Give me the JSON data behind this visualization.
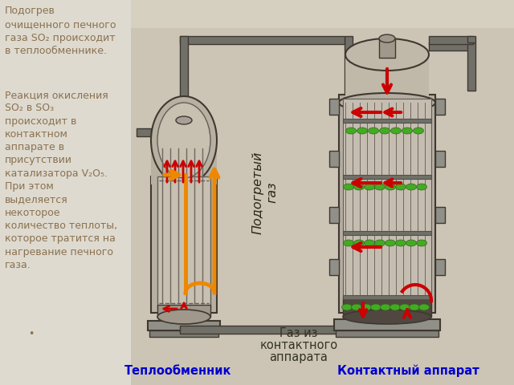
{
  "slide_bg": "#ccc8bc",
  "left_panel_bg": "#dedad0",
  "image_bg": "#ccc5b5",
  "text_color": "#8b7250",
  "text_left_1": "Подогрев\nочищенного печного\nгаза SO₂ происходит\nв теплообменнике.",
  "text_left_2": "Реакция окисления\nSO₂ в SO₃\nпроисходит в\nконтактном\nаппарате в\nприсутствии\nкатализатора V₂O₅.\nПри этом\nвыделяется\nнекоторое\nколичество теплоты,\nкоторое тратится на\nнагревание печного\nгаза.",
  "bullet": "•",
  "label_heat_exchanger": "Теплообменник",
  "label_contact_app": "Контактный аппарат",
  "label_hot_gas": "Подогретый\nгаз",
  "label_gas_from_line1": "Газ из",
  "label_gas_from_line2": "контактного",
  "label_gas_from_line3": "аппарата",
  "label_color": "#0000cc",
  "gas_label_color": "#333320",
  "arrow_red": "#cc0000",
  "arrow_orange": "#ee8800",
  "green_dot": "#44aa22",
  "apparatus_bg": "#c8c0b0",
  "apparatus_dark": "#403830",
  "apparatus_mid": "#908880",
  "pipe_color": "#707068",
  "text_fontsize": 9.0,
  "label_fontsize": 10.5
}
